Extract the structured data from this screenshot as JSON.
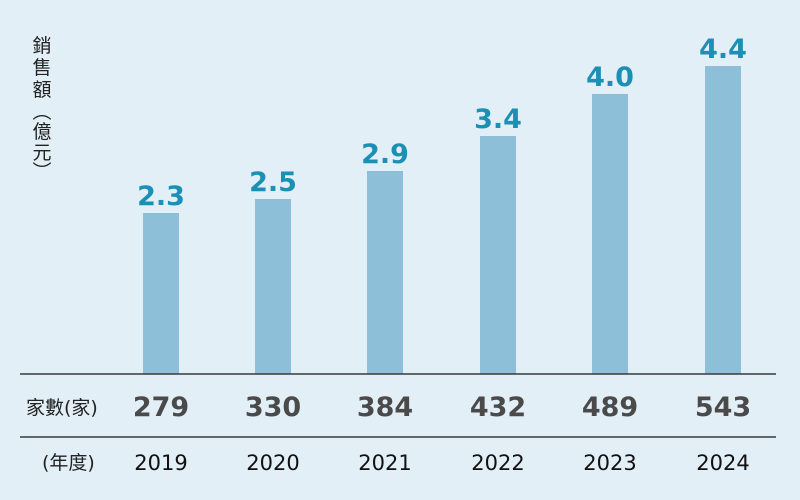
{
  "chart_data": {
    "type": "bar",
    "ylabel": "銷售額（億元）",
    "categories": [
      "2019",
      "2020",
      "2021",
      "2022",
      "2023",
      "2024"
    ],
    "values": [
      2.3,
      2.5,
      2.9,
      3.4,
      4.0,
      4.4
    ],
    "value_labels": [
      "2.3",
      "2.5",
      "2.9",
      "3.4",
      "4.0",
      "4.4"
    ],
    "ylim": [
      0,
      4.6
    ],
    "grid": false,
    "bar_color": "#8ebfd8",
    "value_label_color": "#1c8fb4",
    "table": {
      "count_row_title": "家數(家)",
      "counts": [
        "279",
        "330",
        "384",
        "432",
        "489",
        "543"
      ],
      "year_row_title": "(年度)"
    }
  }
}
